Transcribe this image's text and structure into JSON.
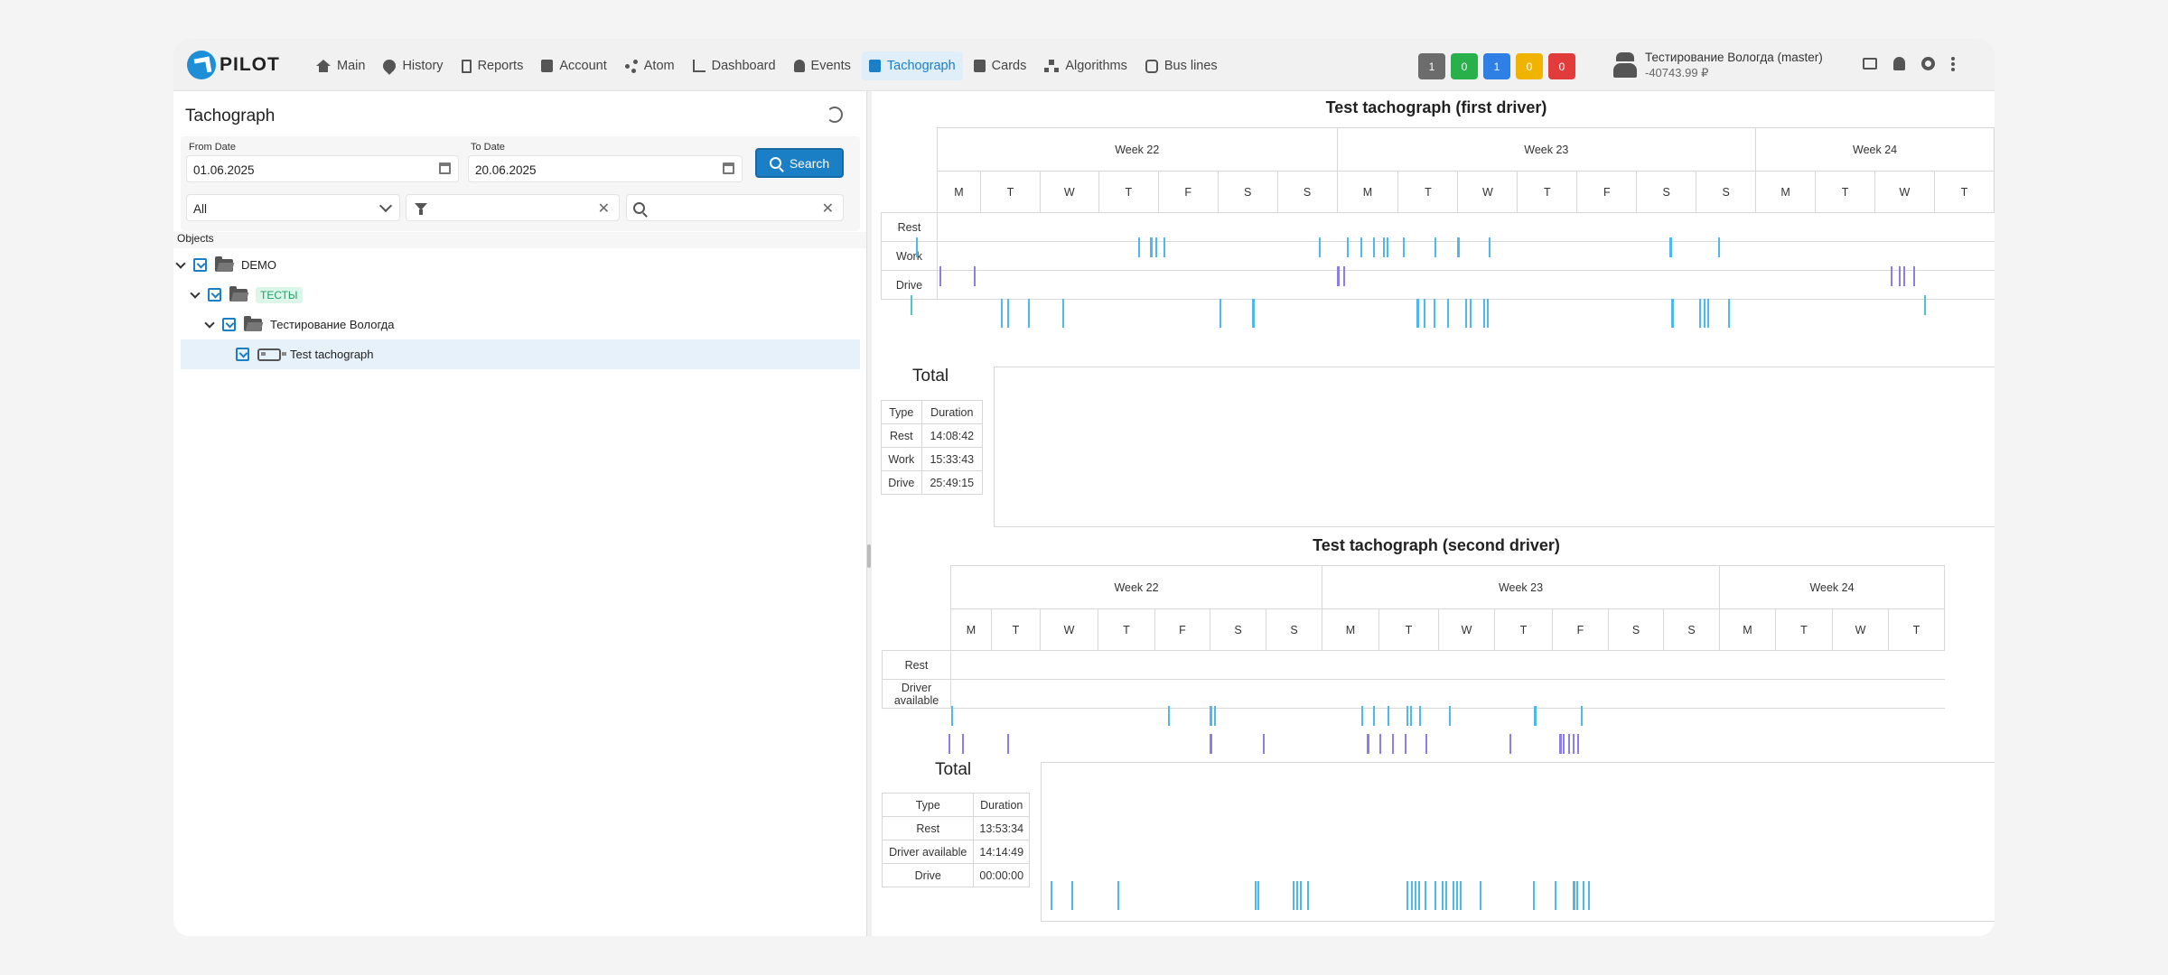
{
  "app": {
    "logo": "PILOT"
  },
  "nav": [
    {
      "label": "Main",
      "icon": "home-icon"
    },
    {
      "label": "History",
      "icon": "map-pin-icon"
    },
    {
      "label": "Reports",
      "icon": "document-icon"
    },
    {
      "label": "Account",
      "icon": "wallet-icon"
    },
    {
      "label": "Atom",
      "icon": "atom-graph-icon"
    },
    {
      "label": "Dashboard",
      "icon": "dashboard-chart-icon"
    },
    {
      "label": "Events",
      "icon": "bell-icon"
    },
    {
      "label": "Tachograph",
      "icon": "tachograph-icon",
      "active": true
    },
    {
      "label": "Cards",
      "icon": "card-icon"
    },
    {
      "label": "Algorithms",
      "icon": "algorithm-tree-icon"
    },
    {
      "label": "Bus lines",
      "icon": "bus-icon"
    }
  ],
  "badges": [
    {
      "value": "1",
      "color": "#6c6c6c"
    },
    {
      "value": "0",
      "color": "#28b04a"
    },
    {
      "value": "1",
      "color": "#2f80e4"
    },
    {
      "value": "0",
      "color": "#f0b400"
    },
    {
      "value": "0",
      "color": "#e23b3b"
    }
  ],
  "user": {
    "name": "Тестирование Вологда (master)",
    "balance": "-40743.99 ₽"
  },
  "left": {
    "title": "Tachograph",
    "from_label": "From Date",
    "from_value": "01.06.2025",
    "to_label": "To Date",
    "to_value": "20.06.2025",
    "search_label": "Search",
    "type_select": "All",
    "filter_value": "",
    "search_value": "",
    "tree_header": "Objects",
    "tree": [
      {
        "label": "DEMO",
        "level": 0,
        "kind": "folder"
      },
      {
        "label": "ТЕСТЫ",
        "level": 1,
        "kind": "folder-tag"
      },
      {
        "label": "Тестирование Вологда",
        "level": 2,
        "kind": "folder"
      },
      {
        "label": "Test tachograph",
        "level": 3,
        "kind": "vehicle",
        "selected": true
      }
    ]
  },
  "charts": [
    {
      "title": "Test tachograph (first driver)",
      "weeks": [
        "Week 22",
        "Week 23",
        "Week 24"
      ],
      "days": [
        "M",
        "T",
        "W",
        "T",
        "F",
        "S",
        "S",
        "M",
        "T",
        "W",
        "T",
        "F",
        "S",
        "S",
        "M",
        "T",
        "W",
        "T"
      ],
      "lanes": [
        "Rest",
        "Work",
        "Drive"
      ],
      "total_title": "Total",
      "table_headers": [
        "Type",
        "Duration"
      ],
      "totals": [
        [
          "Rest",
          "14:08:42"
        ],
        [
          "Work",
          "15:33:43"
        ],
        [
          "Drive",
          "25:49:15"
        ]
      ]
    },
    {
      "title": "Test tachograph (second driver)",
      "weeks": [
        "Week 22",
        "Week 23",
        "Week 24"
      ],
      "days": [
        "M",
        "T",
        "W",
        "T",
        "F",
        "S",
        "S",
        "M",
        "T",
        "W",
        "T",
        "F",
        "S",
        "S",
        "M",
        "T",
        "W",
        "T"
      ],
      "lanes": [
        "Rest",
        "Driver available"
      ],
      "total_title": "Total",
      "table_headers": [
        "Type",
        "Duration"
      ],
      "totals": [
        [
          "Rest",
          "13:53:34"
        ],
        [
          "Driver available",
          "14:14:49"
        ],
        [
          "Drive",
          "00:00:00"
        ]
      ]
    }
  ],
  "colors": {
    "rest": "#4fb8ec",
    "work": "#8c7fde",
    "drive": "#4fc4c9",
    "accent": "#1a7fc5"
  }
}
